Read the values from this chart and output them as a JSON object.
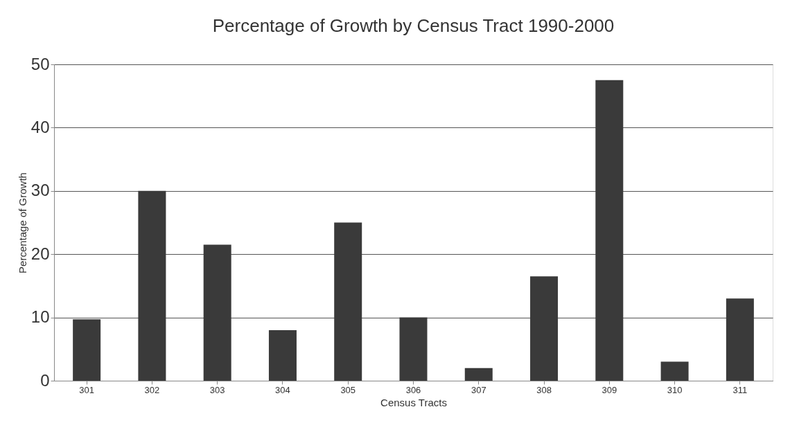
{
  "chart_data": {
    "type": "bar",
    "title": "Percentage of Growth by Census Tract 1990-2000",
    "xlabel": "Census Tracts",
    "ylabel": "Percentage of Growth",
    "categories": [
      "301",
      "302",
      "303",
      "304",
      "305",
      "306",
      "307",
      "308",
      "309",
      "310",
      "311"
    ],
    "series": [
      {
        "color": "#3a3a3a",
        "values": [
          9.7,
          30,
          21.5,
          8,
          25,
          10,
          2,
          16.5,
          47.5,
          3,
          13
        ]
      }
    ],
    "ylim": [
      0,
      50
    ],
    "yticks": [
      0,
      10,
      20,
      30,
      40,
      50
    ],
    "grid": "y",
    "legend": false
  }
}
